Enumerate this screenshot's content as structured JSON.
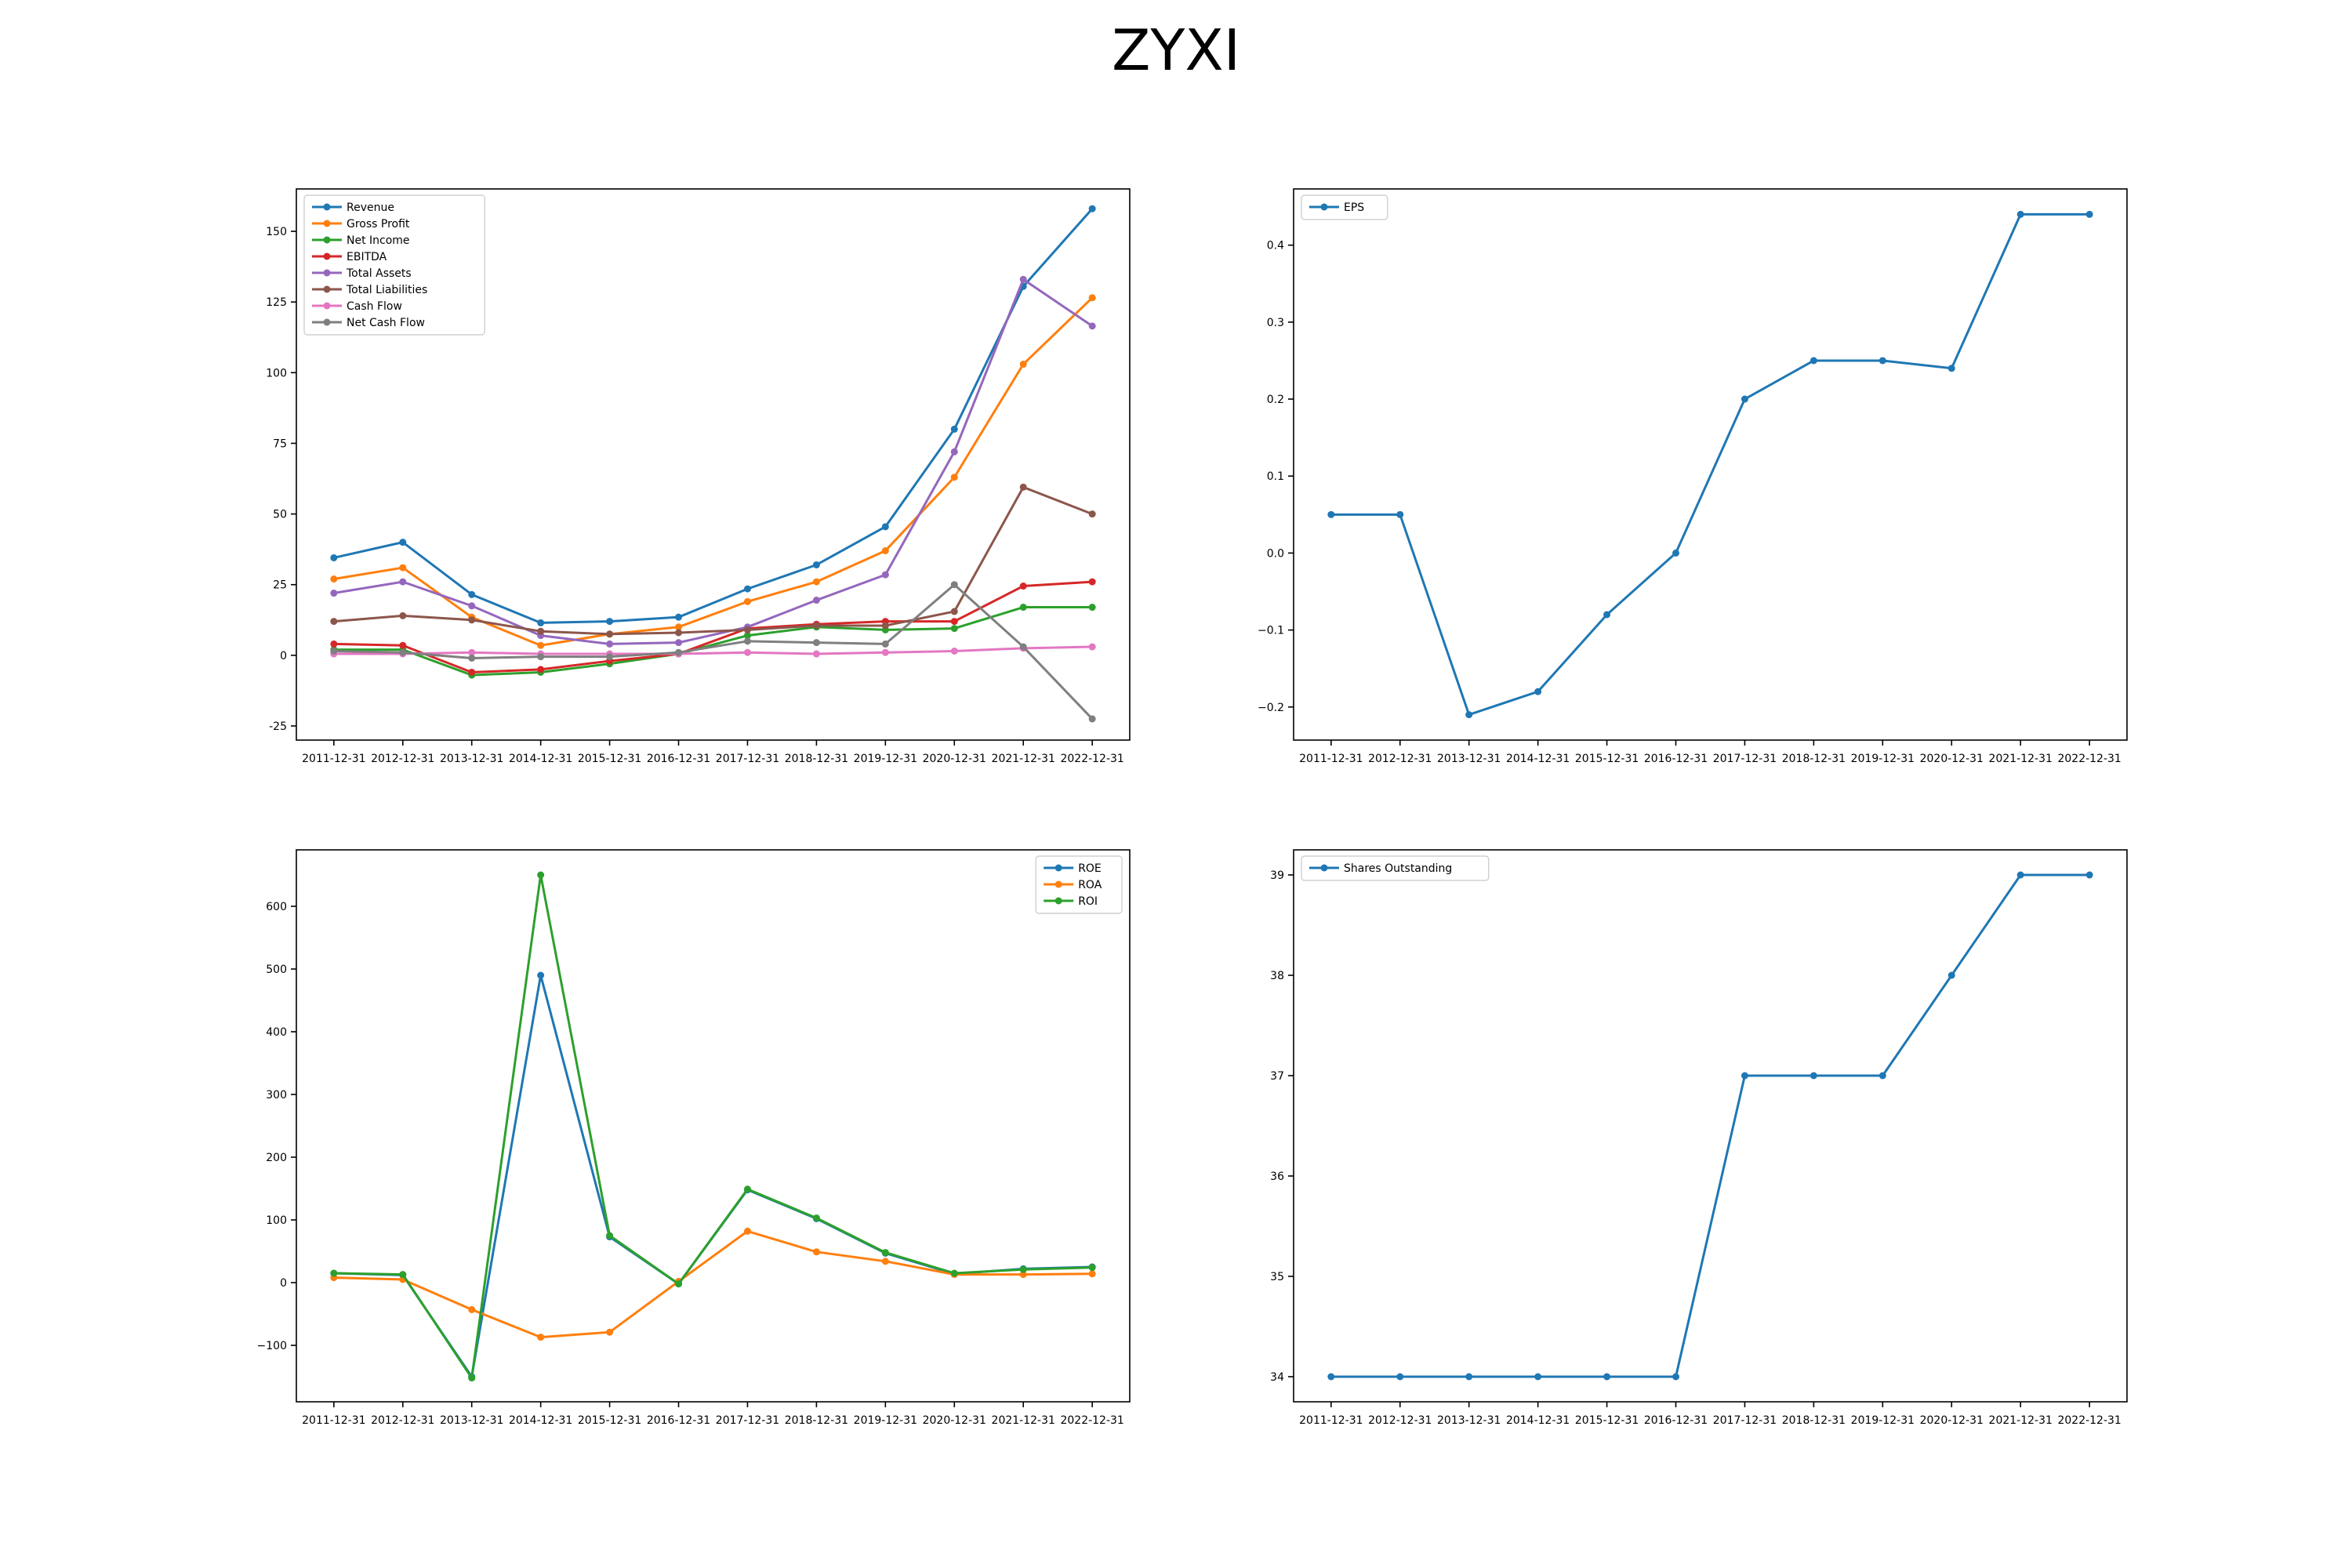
{
  "title": "ZYXI",
  "chart_data": [
    {
      "type": "line",
      "x": [
        "2011-12-31",
        "2012-12-31",
        "2013-12-31",
        "2014-12-31",
        "2015-12-31",
        "2016-12-31",
        "2017-12-31",
        "2018-12-31",
        "2019-12-31",
        "2020-12-31",
        "2021-12-31",
        "2022-12-31"
      ],
      "ylim": [
        -30,
        165
      ],
      "yticks": [
        -25,
        0,
        25,
        50,
        75,
        100,
        125,
        150
      ],
      "legend_position": "upper-left",
      "series": [
        {
          "name": "Revenue",
          "color": "#1f77b4",
          "values": [
            34.5,
            40,
            21.5,
            11.5,
            12,
            13.5,
            23.5,
            32,
            45.5,
            80,
            130.5,
            158
          ]
        },
        {
          "name": "Gross Profit",
          "color": "#ff7f0e",
          "values": [
            27,
            31,
            13.5,
            3.5,
            7.5,
            10,
            19,
            26,
            37,
            63,
            103,
            126.5
          ]
        },
        {
          "name": "Net Income",
          "color": "#2ca02c",
          "values": [
            2,
            2,
            -7,
            -6,
            -3,
            0.5,
            7,
            10,
            9,
            9.5,
            17,
            17
          ]
        },
        {
          "name": "EBITDA",
          "color": "#d62728",
          "values": [
            4,
            3.5,
            -6,
            -5,
            -2,
            0.5,
            9.5,
            11,
            12,
            12,
            24.5,
            26
          ]
        },
        {
          "name": "Total Assets",
          "color": "#9467bd",
          "values": [
            22,
            26,
            17.5,
            7,
            4,
            4.5,
            10,
            19.5,
            28.5,
            72,
            133,
            116.5
          ]
        },
        {
          "name": "Total Liabilities",
          "color": "#8c564b",
          "values": [
            12,
            14,
            12.5,
            8.5,
            7.5,
            8,
            9,
            10.5,
            10.5,
            15.5,
            59.5,
            50
          ]
        },
        {
          "name": "Cash Flow",
          "color": "#e377c2",
          "values": [
            0.5,
            0.5,
            1,
            0.5,
            0.5,
            0.5,
            1,
            0.5,
            1,
            1.5,
            2.5,
            3
          ]
        },
        {
          "name": "Net Cash Flow",
          "color": "#7f7f7f",
          "values": [
            1.5,
            1,
            -1,
            -0.5,
            -0.5,
            1,
            5,
            4.5,
            4,
            25,
            3,
            -22.5
          ]
        }
      ]
    },
    {
      "type": "line",
      "x": [
        "2011-12-31",
        "2012-12-31",
        "2013-12-31",
        "2014-12-31",
        "2015-12-31",
        "2016-12-31",
        "2017-12-31",
        "2018-12-31",
        "2019-12-31",
        "2020-12-31",
        "2021-12-31",
        "2022-12-31"
      ],
      "ylim": [
        -0.243,
        0.473
      ],
      "yticks": [
        -0.2,
        -0.1,
        0.0,
        0.1,
        0.2,
        0.3,
        0.4
      ],
      "ytick_labels": [
        "−0.2",
        "−0.1",
        "0.0",
        "0.1",
        "0.2",
        "0.3",
        "0.4"
      ],
      "legend_position": "upper-left",
      "series": [
        {
          "name": "EPS",
          "color": "#1f77b4",
          "values": [
            0.05,
            0.05,
            -0.21,
            -0.18,
            -0.08,
            0.0,
            0.2,
            0.25,
            0.25,
            0.24,
            0.44,
            0.44
          ]
        }
      ]
    },
    {
      "type": "line",
      "x": [
        "2011-12-31",
        "2012-12-31",
        "2013-12-31",
        "2014-12-31",
        "2015-12-31",
        "2016-12-31",
        "2017-12-31",
        "2018-12-31",
        "2019-12-31",
        "2020-12-31",
        "2021-12-31",
        "2022-12-31"
      ],
      "ylim": [
        -190,
        690
      ],
      "yticks": [
        -100,
        0,
        100,
        200,
        300,
        400,
        500,
        600
      ],
      "ytick_labels": [
        "−100",
        "0",
        "100",
        "200",
        "300",
        "400",
        "500",
        "600"
      ],
      "legend_position": "upper-right",
      "series": [
        {
          "name": "ROE",
          "color": "#1f77b4",
          "values": [
            15,
            12,
            -150,
            490,
            73,
            -2,
            148,
            102,
            47,
            14,
            22,
            25
          ]
        },
        {
          "name": "ROA",
          "color": "#ff7f0e",
          "values": [
            8,
            5,
            -43,
            -87,
            -79,
            2,
            82,
            49,
            34,
            13,
            13,
            14
          ]
        },
        {
          "name": "ROI",
          "color": "#2ca02c",
          "values": [
            15,
            13,
            -152,
            650,
            75,
            -2,
            149,
            103,
            48,
            15,
            21,
            24
          ]
        }
      ]
    },
    {
      "type": "line",
      "x": [
        "2011-12-31",
        "2012-12-31",
        "2013-12-31",
        "2014-12-31",
        "2015-12-31",
        "2016-12-31",
        "2017-12-31",
        "2018-12-31",
        "2019-12-31",
        "2020-12-31",
        "2021-12-31",
        "2022-12-31"
      ],
      "ylim": [
        33.75,
        39.25
      ],
      "yticks": [
        34,
        35,
        36,
        37,
        38,
        39
      ],
      "legend_position": "upper-left",
      "series": [
        {
          "name": "Shares Outstanding",
          "color": "#1f77b4",
          "values": [
            34,
            34,
            34,
            34,
            34,
            34,
            37,
            37,
            37,
            38,
            39,
            39
          ]
        }
      ]
    }
  ]
}
